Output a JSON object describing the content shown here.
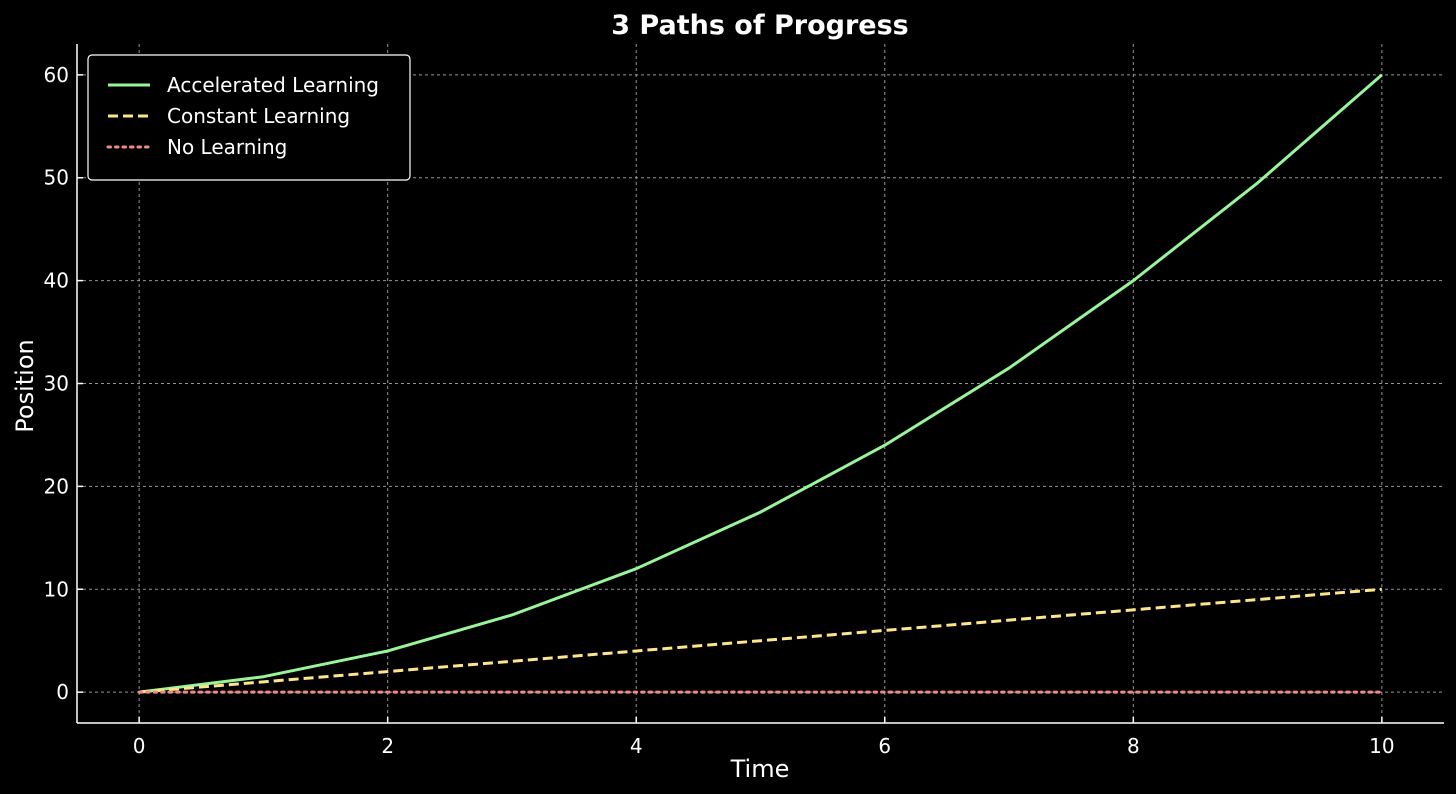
{
  "chart_data": {
    "type": "line",
    "title": "3 Paths of Progress",
    "xlabel": "Time",
    "ylabel": "Position",
    "xlim": [
      -0.5,
      10.5
    ],
    "ylim": [
      -3,
      63
    ],
    "xticks": [
      0,
      2,
      4,
      6,
      8,
      10
    ],
    "yticks": [
      0,
      10,
      20,
      30,
      40,
      50,
      60
    ],
    "grid": true,
    "legend_position": "upper-left",
    "background": "#000000",
    "x": [
      0,
      1,
      2,
      3,
      4,
      5,
      6,
      7,
      8,
      9,
      10
    ],
    "series": [
      {
        "name": "Accelerated Learning",
        "values": [
          0,
          1.5,
          4,
          7.5,
          12,
          17.5,
          24,
          31.5,
          40,
          49.5,
          60
        ],
        "color": "#98f59a",
        "style": "solid"
      },
      {
        "name": "Constant Learning",
        "values": [
          0,
          1,
          2,
          3,
          4,
          5,
          6,
          7,
          8,
          9,
          10
        ],
        "color": "#fde68a",
        "style": "dashed"
      },
      {
        "name": "No Learning",
        "values": [
          0,
          0,
          0,
          0,
          0,
          0,
          0,
          0,
          0,
          0,
          0
        ],
        "color": "#f08a82",
        "style": "dotted"
      }
    ]
  }
}
